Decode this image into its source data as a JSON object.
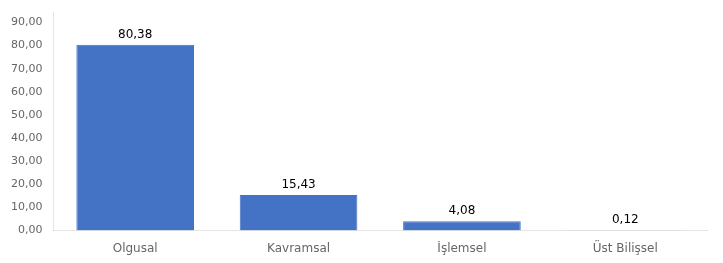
{
  "chart_data": {
    "type": "bar",
    "categories": [
      "Olgusal",
      "Kavramsal",
      "İşlemsel",
      "Üst Bilişsel"
    ],
    "values": [
      80.38,
      15.43,
      4.08,
      0.12
    ],
    "value_labels": [
      "80,38",
      "15,43",
      "4,08",
      "0,12"
    ],
    "data_labels": true,
    "color": "#4472C4",
    "ylim": [
      0,
      94.5
    ],
    "yticks": [
      {
        "value": 0.0,
        "label": "0,00"
      },
      {
        "value": 10.0,
        "label": "10,00"
      },
      {
        "value": 20.0,
        "label": "20,00"
      },
      {
        "value": 30.0,
        "label": "30,00"
      },
      {
        "value": 40.0,
        "label": "40,00"
      },
      {
        "value": 50.0,
        "label": "50,00"
      },
      {
        "value": 60.0,
        "label": "60,00"
      },
      {
        "value": 70.0,
        "label": "70,00"
      },
      {
        "value": 80.0,
        "label": "80,00"
      },
      {
        "value": 90.0,
        "label": "90,00"
      }
    ],
    "grid": false
  }
}
